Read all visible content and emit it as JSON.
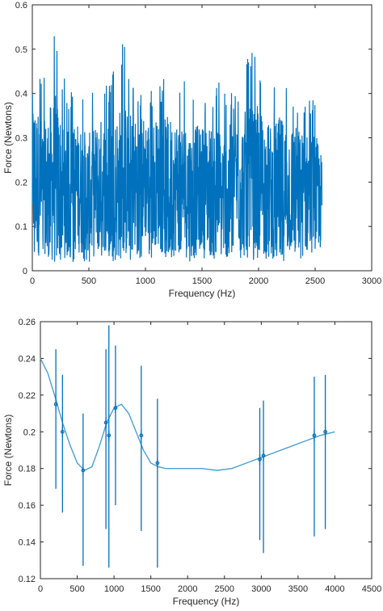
{
  "chart_data": [
    {
      "type": "line",
      "title": "",
      "xlabel": "Frequency (Hz)",
      "ylabel": "Force (Newtons)",
      "xlim": [
        0,
        3000
      ],
      "ylim": [
        0,
        0.6
      ],
      "xticks": [
        "0",
        "500",
        "1000",
        "1500",
        "2000",
        "2500",
        "3000"
      ],
      "yticks": [
        "0",
        "0.1",
        "0.2",
        "0.3",
        "0.4",
        "0.5",
        "0.6"
      ],
      "grid": false,
      "color": "#0072BD",
      "series": [
        {
          "x": [
            0,
            100,
            200,
            300,
            400,
            500,
            600,
            700,
            800,
            900,
            1000,
            1100,
            1200,
            1300,
            1400,
            1500,
            1600,
            1700,
            1800,
            1900,
            2000,
            2100,
            2200,
            2300,
            2400,
            2500,
            2560
          ],
          "y_min": [
            0.02,
            0.04,
            0.02,
            0.03,
            0.01,
            0.02,
            0.03,
            0.02,
            0.03,
            0.02,
            0.03,
            0.02,
            0.02,
            0.03,
            0.02,
            0.03,
            0.02,
            0.03,
            0.02,
            0.03,
            0.02,
            0.03,
            0.02,
            0.03,
            0.02,
            0.04,
            0.05
          ],
          "y_max": [
            0.5,
            0.45,
            0.56,
            0.42,
            0.4,
            0.42,
            0.42,
            0.44,
            0.52,
            0.44,
            0.42,
            0.4,
            0.47,
            0.42,
            0.44,
            0.4,
            0.43,
            0.43,
            0.4,
            0.5,
            0.48,
            0.43,
            0.5,
            0.42,
            0.4,
            0.4,
            0.34
          ],
          "y_center": [
            0.22,
            0.18,
            0.2,
            0.17,
            0.19,
            0.16,
            0.2,
            0.18,
            0.2,
            0.19,
            0.21,
            0.2,
            0.18,
            0.2,
            0.17,
            0.19,
            0.18,
            0.17,
            0.2,
            0.19,
            0.2,
            0.18,
            0.17,
            0.19,
            0.17,
            0.18,
            0.15
          ]
        }
      ]
    },
    {
      "type": "line",
      "title": "",
      "xlabel": "Frequency (Hz)",
      "ylabel": "Force (Newtons)",
      "xlim": [
        0,
        4500
      ],
      "ylim": [
        0.12,
        0.26
      ],
      "xticks": [
        "0",
        "500",
        "1000",
        "1500",
        "2000",
        "2500",
        "3000",
        "3500",
        "4000",
        "4500"
      ],
      "yticks": [
        "0.12",
        "0.14",
        "0.16",
        "0.18",
        "0.2",
        "0.22",
        "0.24",
        "0.26"
      ],
      "grid": false,
      "color": "#0072BD",
      "series": [
        {
          "x": [
            0,
            100,
            200,
            300,
            400,
            500,
            600,
            700,
            800,
            900,
            1000,
            1100,
            1200,
            1300,
            1400,
            1500,
            1600,
            1700,
            1800,
            2000,
            2200,
            2400,
            2600,
            2800,
            3000,
            3200,
            3400,
            3600,
            3800,
            4000
          ],
          "y": [
            0.24,
            0.232,
            0.219,
            0.205,
            0.193,
            0.183,
            0.179,
            0.181,
            0.192,
            0.205,
            0.213,
            0.215,
            0.21,
            0.2,
            0.19,
            0.183,
            0.181,
            0.18,
            0.18,
            0.18,
            0.18,
            0.179,
            0.18,
            0.183,
            0.186,
            0.189,
            0.192,
            0.195,
            0.198,
            0.2
          ]
        }
      ],
      "error_bars": [
        {
          "x": 210,
          "y": 0.215,
          "low": 0.169,
          "high": 0.245
        },
        {
          "x": 300,
          "y": 0.2,
          "low": 0.156,
          "high": 0.231
        },
        {
          "x": 580,
          "y": 0.179,
          "low": 0.127,
          "high": 0.21
        },
        {
          "x": 890,
          "y": 0.205,
          "low": 0.147,
          "high": 0.245
        },
        {
          "x": 930,
          "y": 0.198,
          "low": 0.126,
          "high": 0.258
        },
        {
          "x": 1020,
          "y": 0.213,
          "low": 0.16,
          "high": 0.247
        },
        {
          "x": 1370,
          "y": 0.198,
          "low": 0.146,
          "high": 0.236
        },
        {
          "x": 1590,
          "y": 0.183,
          "low": 0.126,
          "high": 0.218
        },
        {
          "x": 2980,
          "y": 0.185,
          "low": 0.141,
          "high": 0.213
        },
        {
          "x": 3030,
          "y": 0.187,
          "low": 0.134,
          "high": 0.217
        },
        {
          "x": 3720,
          "y": 0.198,
          "low": 0.143,
          "high": 0.23
        },
        {
          "x": 3870,
          "y": 0.2,
          "low": 0.147,
          "high": 0.231
        }
      ]
    }
  ]
}
